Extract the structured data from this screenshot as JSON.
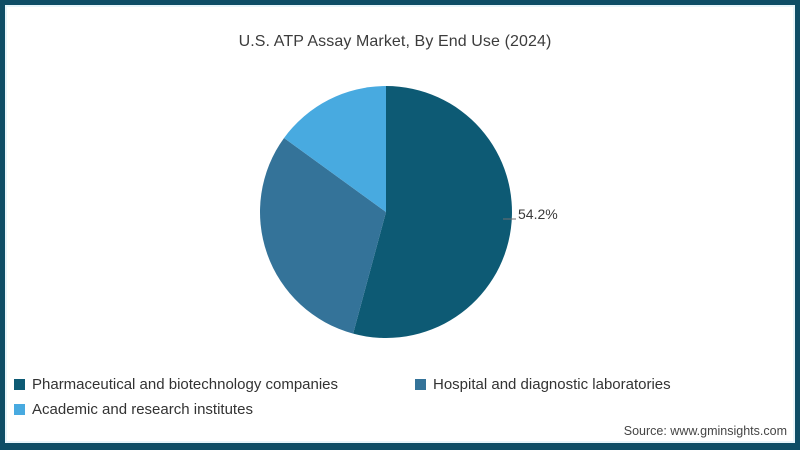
{
  "chart_data": {
    "type": "pie",
    "title": "U.S. ATP Assay Market, By End Use (2024)",
    "start_angle_deg": 0,
    "direction": "clockwise",
    "legend_position": "bottom-left",
    "slices": [
      {
        "label": "Pharmaceutical and biotechnology companies",
        "value": 54.2,
        "data_label": "54.2%",
        "color": "#0d5a74"
      },
      {
        "label": "Hospital and diagnostic laboratories",
        "value": 30.8,
        "data_label": "",
        "color": "#347399"
      },
      {
        "label": "Academic and research institutes",
        "value": 15.0,
        "data_label": "",
        "color": "#48aae0"
      }
    ]
  },
  "source": "Source: www.gminsights.com",
  "colors": {
    "frame_border": "#0e4d66",
    "frame_inner_line": "#e7f5fb",
    "title_text": "#3c3c3c",
    "label_text": "#3a3a3a",
    "background": "#ffffff"
  }
}
